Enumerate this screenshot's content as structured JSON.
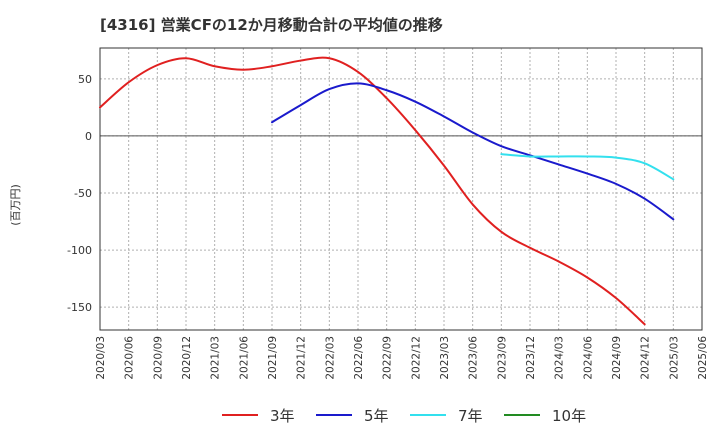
{
  "title": "[4316]  営業CFの12か月移動合計の平均値の推移",
  "chart_data": {
    "type": "line",
    "ylabel": "(百万円)",
    "xlabel": "",
    "ylim": [
      -170,
      77
    ],
    "yticks": [
      50,
      0,
      -50,
      -100,
      -150
    ],
    "xticks": [
      "2020/03",
      "2020/06",
      "2020/09",
      "2020/12",
      "2021/03",
      "2021/06",
      "2021/09",
      "2021/12",
      "2022/03",
      "2022/06",
      "2022/09",
      "2022/12",
      "2023/03",
      "2023/06",
      "2023/09",
      "2023/12",
      "2024/03",
      "2024/06",
      "2024/09",
      "2024/12",
      "2025/03",
      "2025/06"
    ],
    "grid": true,
    "legend_position": "bottom",
    "series": [
      {
        "name": "3年",
        "color": "#e02020",
        "start_index": 0,
        "values": [
          25,
          47,
          62,
          68,
          61,
          58,
          61,
          66,
          68,
          56,
          33,
          5,
          -26,
          -60,
          -84,
          -98,
          -110,
          -124,
          -142,
          -165
        ]
      },
      {
        "name": "5年",
        "color": "#1a1acc",
        "start_index": 6,
        "values": [
          12,
          27,
          41,
          46,
          40,
          30,
          17,
          3,
          -9,
          -17,
          -25,
          -33,
          -42,
          -55,
          -73
        ]
      },
      {
        "name": "7年",
        "color": "#33e0ee",
        "start_index": 14,
        "values": [
          -16,
          -18,
          -18,
          -18,
          -19,
          -24,
          -38
        ]
      },
      {
        "name": "10年",
        "color": "#228b22",
        "start_index": 0,
        "values": []
      }
    ]
  }
}
